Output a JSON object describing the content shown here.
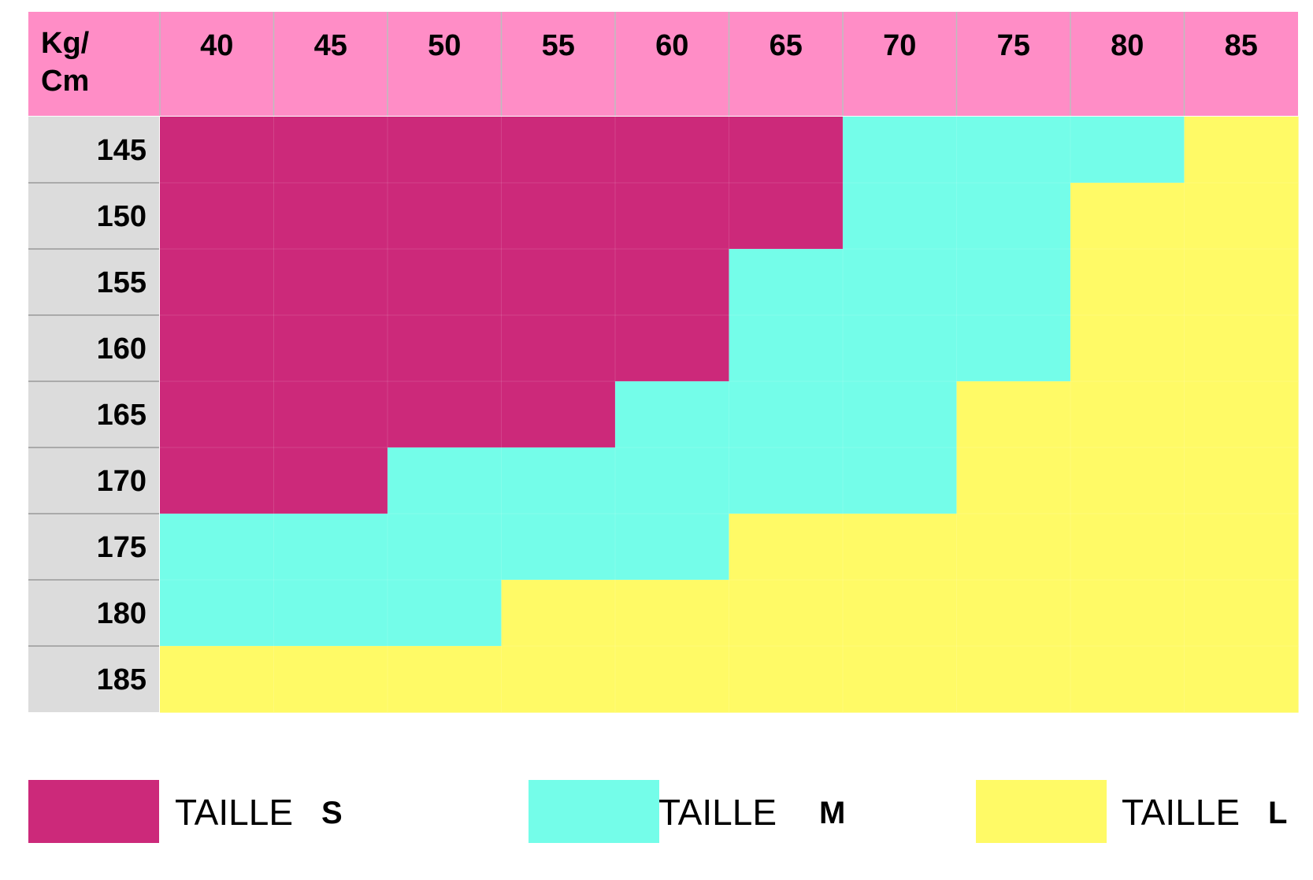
{
  "chart_data": {
    "type": "table",
    "corner_label": [
      "Kg/",
      "Cm"
    ],
    "columns": [
      "40",
      "45",
      "50",
      "55",
      "60",
      "65",
      "70",
      "75",
      "80",
      "85"
    ],
    "rows": [
      "145",
      "150",
      "155",
      "160",
      "165",
      "170",
      "175",
      "180",
      "185"
    ],
    "cells": [
      [
        "S",
        "S",
        "S",
        "S",
        "S",
        "S",
        "M",
        "M",
        "M",
        "L"
      ],
      [
        "S",
        "S",
        "S",
        "S",
        "S",
        "S",
        "M",
        "M",
        "L",
        "L"
      ],
      [
        "S",
        "S",
        "S",
        "S",
        "S",
        "M",
        "M",
        "M",
        "L",
        "L"
      ],
      [
        "S",
        "S",
        "S",
        "S",
        "S",
        "M",
        "M",
        "M",
        "L",
        "L"
      ],
      [
        "S",
        "S",
        "S",
        "S",
        "M",
        "M",
        "M",
        "L",
        "L",
        "L"
      ],
      [
        "S",
        "S",
        "M",
        "M",
        "M",
        "M",
        "M",
        "L",
        "L",
        "L"
      ],
      [
        "M",
        "M",
        "M",
        "M",
        "M",
        "L",
        "L",
        "L",
        "L",
        "L"
      ],
      [
        "M",
        "M",
        "M",
        "L",
        "L",
        "L",
        "L",
        "L",
        "L",
        "L"
      ],
      [
        "L",
        "L",
        "L",
        "L",
        "L",
        "L",
        "L",
        "L",
        "L",
        "L"
      ]
    ],
    "legend": [
      {
        "key": "S",
        "label": "TAILLE",
        "size": "S",
        "color": "#cc297a"
      },
      {
        "key": "M",
        "label": "TAILLE",
        "size": "M",
        "color": "#74fde9"
      },
      {
        "key": "L",
        "label": "TAILLE",
        "size": "L",
        "color": "#fffa66"
      }
    ],
    "colors": {
      "header_bg": "#ff8dc6",
      "row_header_bg": "#dcdcdc",
      "S": "#cc297a",
      "M": "#74fde9",
      "L": "#fffa66"
    }
  }
}
